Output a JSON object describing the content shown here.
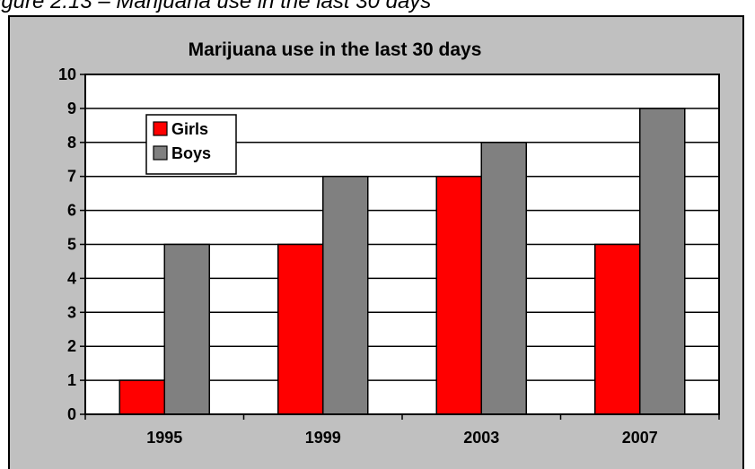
{
  "caption": "igure 2.13 – Marijuana use in the last 30 days",
  "chart_data": {
    "type": "bar",
    "title": "Marijuana use in the last 30 days",
    "categories": [
      "1995",
      "1999",
      "2003",
      "2007"
    ],
    "series": [
      {
        "name": "Girls",
        "values": [
          1,
          5,
          7,
          5
        ],
        "color": "#ff0000"
      },
      {
        "name": "Boys",
        "values": [
          5,
          7,
          8,
          9
        ],
        "color": "#808080"
      }
    ],
    "xlabel": "",
    "ylabel": "",
    "ylim": [
      0,
      10
    ],
    "yticks": [
      "0",
      "1",
      "2",
      "3",
      "4",
      "5",
      "6",
      "7",
      "8",
      "9",
      "10"
    ],
    "grid": true,
    "legend_position": "top-left"
  }
}
